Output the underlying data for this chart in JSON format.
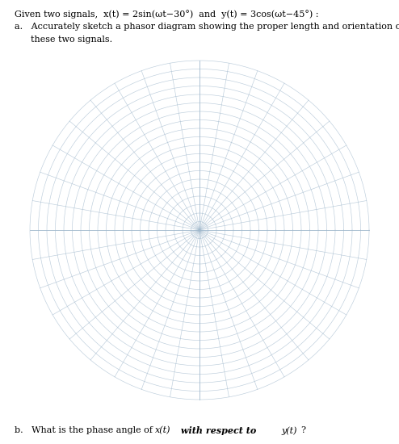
{
  "title_line1": "Given two signals,  x(t) = 2sin(ωt−30°)  and  y(t) = 3cos(ωt−45°) :",
  "part_a_line1": "a.   Accurately sketch a phasor diagram showing the proper length and orientation of each of",
  "part_a_line2": "      these two signals.",
  "part_b": "b.   What is the phase angle of  x(t)  with respect to y(t)?",
  "grid_color": "#a0b8cc",
  "grid_alpha": 0.7,
  "bg_color": "#ffffff",
  "num_circles": 20,
  "num_radial_lines": 36,
  "text_fontsize": 8.0,
  "figwidth": 4.94,
  "figheight": 5.5
}
